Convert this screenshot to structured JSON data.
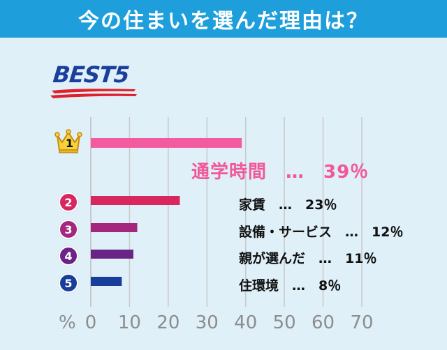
{
  "header": {
    "title": "今の住まいを選んだ理由は？"
  },
  "badge_title": "BEST5",
  "chart_data": {
    "type": "bar",
    "orientation": "horizontal",
    "title": "今の住まいを選んだ理由は？",
    "unit_label": "%",
    "xlim": [
      0,
      70
    ],
    "ticks": [
      "0",
      "10",
      "20",
      "30",
      "40",
      "50",
      "60",
      "70"
    ],
    "grid": true,
    "bars": [
      {
        "rank": "1",
        "name": "通学時間",
        "value": 39,
        "display": "通学時間　…　39％",
        "color": "#f45aa0"
      },
      {
        "rank": "2",
        "name": "家賃",
        "value": 23,
        "display": "家賃　…　23％",
        "color": "#d8265f"
      },
      {
        "rank": "3",
        "name": "設備・サービス",
        "value": 12,
        "display": "設備・サービス　…　12％",
        "color": "#a3267f"
      },
      {
        "rank": "4",
        "name": "親が選んだ",
        "value": 11,
        "display": "親が選んだ　…　11％",
        "color": "#6a2387"
      },
      {
        "rank": "5",
        "name": "住環境",
        "value": 8,
        "display": "住環境　…　8％",
        "color": "#173f99"
      }
    ]
  },
  "colors": {
    "background": "#dff0f8",
    "header": "#1e9fdc",
    "grid": "#c9c9c9",
    "tick_text": "#8d8d8d",
    "best_text": "#1b3f9c",
    "underline": "#e0202a"
  },
  "icons": {
    "rank1": "crown-icon"
  }
}
